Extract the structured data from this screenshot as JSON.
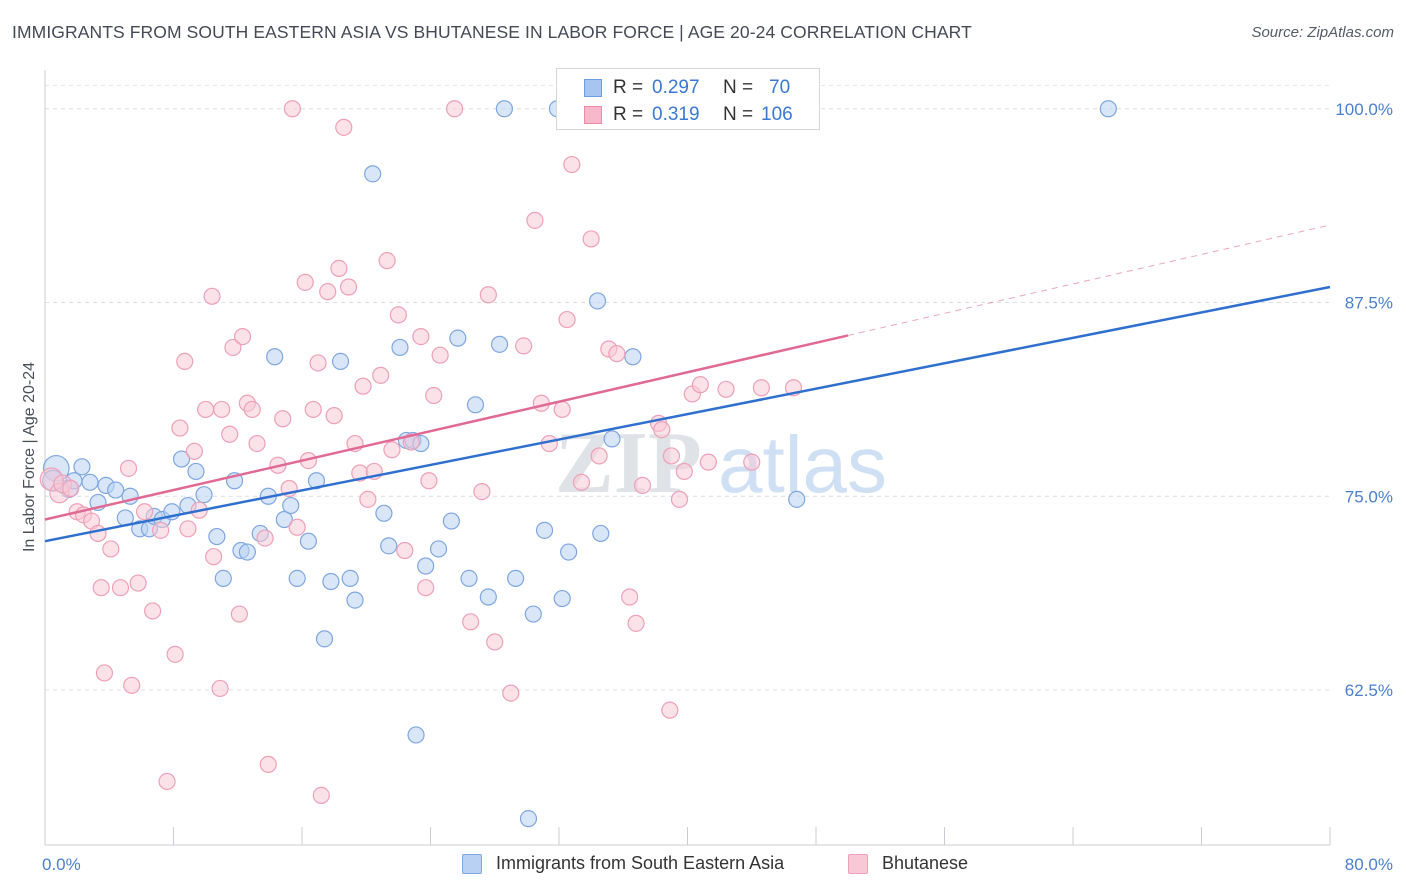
{
  "title": "IMMIGRANTS FROM SOUTH EASTERN ASIA VS BHUTANESE IN LABOR FORCE | AGE 20-24 CORRELATION CHART",
  "source": "Source: ZipAtlas.com",
  "watermark": {
    "zip": "ZIP",
    "atlas": "atlas"
  },
  "stats": [
    {
      "r_label": "R =",
      "r_value": "0.297",
      "n_label": "N =",
      "n_value": "70",
      "color": "#a7c5ee",
      "border": "#6d9de0"
    },
    {
      "r_label": "R =",
      "r_value": "0.319",
      "n_label": "N =",
      "n_value": "106",
      "color": "#f7b8cb",
      "border": "#ec8aaa"
    }
  ],
  "legend": [
    {
      "label": "Immigrants from South Eastern Asia",
      "color": "#b9d1f3",
      "border": "#7ea6e0"
    },
    {
      "label": "Bhutanese",
      "color": "#f8c8d6",
      "border": "#eea0b8"
    }
  ],
  "chart_data": {
    "type": "scatter",
    "title": "IMMIGRANTS FROM SOUTH EASTERN ASIA VS BHUTANESE IN LABOR FORCE | AGE 20-24 CORRELATION CHART",
    "xlabel": "",
    "ylabel": "In Labor Force | Age 20-24",
    "xlim": [
      0,
      80
    ],
    "ylim": [
      52.5,
      102.5
    ],
    "x_tick_labels": [
      {
        "v": 0,
        "t": "0.0%"
      },
      {
        "v": 80,
        "t": "80.0%"
      }
    ],
    "y_tick_labels": [
      {
        "v": 62.5,
        "t": "62.5%"
      },
      {
        "v": 75.0,
        "t": "75.0%"
      },
      {
        "v": 87.5,
        "t": "87.5%"
      },
      {
        "v": 100.0,
        "t": "100.0%"
      }
    ],
    "grid": "horizontal dashed",
    "legend_position": "bottom",
    "series": [
      {
        "name": "Immigrants from South Eastern Asia",
        "color": "#7ea6e0",
        "fill": "#b9d1f3",
        "line_color": "#2f6fce",
        "trend": {
          "x0": 0,
          "y0": 72.1,
          "x1": 80,
          "y1": 88.5,
          "dashed_from": null
        },
        "points": [
          [
            0.7,
            76.8,
            16
          ],
          [
            0.5,
            76.0,
            13
          ],
          [
            1.5,
            75.5,
            11
          ],
          [
            2.3,
            76.9,
            10
          ],
          [
            1.8,
            76.0,
            10
          ],
          [
            2.8,
            75.9,
            10
          ],
          [
            3.3,
            74.6,
            10
          ],
          [
            3.8,
            75.7,
            10
          ],
          [
            4.4,
            75.4,
            10
          ],
          [
            5.3,
            75.0,
            10
          ],
          [
            5.0,
            73.6,
            10
          ],
          [
            5.9,
            72.9,
            10
          ],
          [
            6.5,
            72.9,
            10
          ],
          [
            6.8,
            73.7,
            10
          ],
          [
            7.3,
            73.5,
            10
          ],
          [
            7.9,
            74.0,
            10
          ],
          [
            8.5,
            77.4,
            10
          ],
          [
            8.9,
            74.4,
            10
          ],
          [
            9.4,
            76.6,
            10
          ],
          [
            9.9,
            75.1,
            10
          ],
          [
            10.7,
            72.4,
            10
          ],
          [
            11.1,
            69.7,
            10
          ],
          [
            11.8,
            76.0,
            10
          ],
          [
            12.2,
            71.5,
            10
          ],
          [
            12.6,
            71.4,
            10
          ],
          [
            13.4,
            72.6,
            10
          ],
          [
            13.9,
            75.0,
            10
          ],
          [
            14.3,
            84.0,
            10
          ],
          [
            14.9,
            73.5,
            10
          ],
          [
            15.3,
            74.4,
            10
          ],
          [
            15.7,
            69.7,
            10
          ],
          [
            16.4,
            72.1,
            10
          ],
          [
            16.9,
            76.0,
            10
          ],
          [
            17.4,
            65.8,
            10
          ],
          [
            17.8,
            69.5,
            10
          ],
          [
            18.4,
            83.7,
            10
          ],
          [
            19.0,
            69.7,
            10
          ],
          [
            19.3,
            68.3,
            10
          ],
          [
            20.4,
            95.8,
            10
          ],
          [
            21.1,
            73.9,
            10
          ],
          [
            21.4,
            71.8,
            10
          ],
          [
            22.1,
            84.6,
            10
          ],
          [
            22.5,
            78.6,
            10
          ],
          [
            22.9,
            78.6,
            10
          ],
          [
            23.4,
            78.4,
            10
          ],
          [
            23.1,
            59.6,
            10
          ],
          [
            23.7,
            70.5,
            10
          ],
          [
            24.5,
            71.6,
            10
          ],
          [
            25.3,
            73.4,
            10
          ],
          [
            25.7,
            85.2,
            10
          ],
          [
            26.4,
            69.7,
            10
          ],
          [
            26.8,
            80.9,
            10
          ],
          [
            27.6,
            68.5,
            10
          ],
          [
            28.3,
            84.8,
            10
          ],
          [
            28.6,
            100.0,
            10
          ],
          [
            29.3,
            69.7,
            10
          ],
          [
            30.4,
            67.4,
            10
          ],
          [
            30.1,
            54.2,
            10
          ],
          [
            31.1,
            72.8,
            10
          ],
          [
            32.2,
            68.4,
            10
          ],
          [
            31.9,
            100.0,
            10
          ],
          [
            32.6,
            71.4,
            10
          ],
          [
            34.2,
            100.0,
            10
          ],
          [
            34.4,
            87.6,
            10
          ],
          [
            34.6,
            72.6,
            10
          ],
          [
            35.3,
            78.7,
            10
          ],
          [
            36.6,
            84.0,
            10
          ],
          [
            46.8,
            74.8,
            10
          ],
          [
            66.2,
            100.0,
            10
          ]
        ]
      },
      {
        "name": "Bhutanese",
        "color": "#eea0b8",
        "fill": "#f8c8d6",
        "line_color": "#e06a94",
        "trend": {
          "x0": 0,
          "y0": 73.5,
          "x1": 80,
          "y1": 92.5,
          "dashed_from": 50
        },
        "points": [
          [
            0.4,
            76.1,
            14
          ],
          [
            0.9,
            75.2,
            12
          ],
          [
            1.1,
            75.8,
            11
          ],
          [
            1.6,
            75.5,
            10
          ],
          [
            2.0,
            74.0,
            10
          ],
          [
            2.4,
            73.8,
            10
          ],
          [
            2.9,
            73.4,
            10
          ],
          [
            3.3,
            72.6,
            10
          ],
          [
            3.5,
            69.1,
            10
          ],
          [
            3.7,
            63.6,
            10
          ],
          [
            4.1,
            71.6,
            10
          ],
          [
            4.7,
            69.1,
            10
          ],
          [
            5.2,
            76.8,
            10
          ],
          [
            5.4,
            62.8,
            10
          ],
          [
            5.8,
            69.4,
            10
          ],
          [
            6.2,
            74.0,
            10
          ],
          [
            6.7,
            67.6,
            10
          ],
          [
            7.2,
            72.8,
            10
          ],
          [
            7.6,
            56.6,
            10
          ],
          [
            8.1,
            64.8,
            10
          ],
          [
            8.4,
            79.4,
            10
          ],
          [
            8.7,
            83.7,
            10
          ],
          [
            8.9,
            72.9,
            10
          ],
          [
            9.3,
            77.9,
            10
          ],
          [
            9.6,
            74.1,
            10
          ],
          [
            10.0,
            80.6,
            10
          ],
          [
            10.5,
            71.1,
            10
          ],
          [
            10.4,
            87.9,
            10
          ],
          [
            10.9,
            62.6,
            10
          ],
          [
            11.0,
            80.6,
            10
          ],
          [
            11.5,
            79.0,
            10
          ],
          [
            11.7,
            84.6,
            10
          ],
          [
            12.1,
            67.4,
            10
          ],
          [
            12.3,
            85.3,
            10
          ],
          [
            12.6,
            81.0,
            10
          ],
          [
            12.9,
            80.6,
            10
          ],
          [
            13.2,
            78.4,
            10
          ],
          [
            13.7,
            72.3,
            10
          ],
          [
            13.9,
            57.7,
            10
          ],
          [
            14.5,
            77.0,
            10
          ],
          [
            14.8,
            80.0,
            10
          ],
          [
            15.2,
            75.5,
            10
          ],
          [
            15.7,
            73.0,
            10
          ],
          [
            15.4,
            100.0,
            10
          ],
          [
            16.2,
            88.8,
            10
          ],
          [
            16.4,
            77.3,
            10
          ],
          [
            16.7,
            80.6,
            10
          ],
          [
            17.0,
            83.6,
            10
          ],
          [
            17.2,
            55.7,
            10
          ],
          [
            17.6,
            88.2,
            10
          ],
          [
            18.0,
            80.2,
            10
          ],
          [
            18.3,
            89.7,
            10
          ],
          [
            18.6,
            98.8,
            10
          ],
          [
            18.9,
            88.5,
            10
          ],
          [
            19.3,
            78.4,
            10
          ],
          [
            19.6,
            76.5,
            10
          ],
          [
            19.8,
            82.1,
            10
          ],
          [
            20.1,
            74.8,
            10
          ],
          [
            20.5,
            76.6,
            10
          ],
          [
            20.9,
            82.8,
            10
          ],
          [
            21.3,
            90.2,
            10
          ],
          [
            21.6,
            78.0,
            10
          ],
          [
            22.0,
            86.7,
            10
          ],
          [
            22.4,
            71.5,
            10
          ],
          [
            22.8,
            78.5,
            10
          ],
          [
            23.4,
            85.3,
            10
          ],
          [
            23.7,
            69.1,
            10
          ],
          [
            23.9,
            76.0,
            10
          ],
          [
            24.2,
            81.5,
            10
          ],
          [
            24.6,
            84.1,
            10
          ],
          [
            25.5,
            100.0,
            10
          ],
          [
            26.5,
            66.9,
            10
          ],
          [
            27.2,
            75.3,
            10
          ],
          [
            27.6,
            88.0,
            10
          ],
          [
            28.0,
            65.6,
            10
          ],
          [
            29.0,
            62.3,
            10
          ],
          [
            29.8,
            84.7,
            10
          ],
          [
            30.5,
            92.8,
            10
          ],
          [
            30.9,
            81.0,
            10
          ],
          [
            31.4,
            78.4,
            10
          ],
          [
            32.2,
            80.6,
            10
          ],
          [
            32.5,
            86.4,
            10
          ],
          [
            32.8,
            96.4,
            10
          ],
          [
            33.4,
            75.9,
            10
          ],
          [
            34.0,
            91.6,
            10
          ],
          [
            34.5,
            77.6,
            10
          ],
          [
            35.1,
            84.5,
            10
          ],
          [
            35.6,
            84.2,
            10
          ],
          [
            36.4,
            68.5,
            10
          ],
          [
            36.8,
            66.8,
            10
          ],
          [
            37.2,
            75.7,
            10
          ],
          [
            38.2,
            79.7,
            10
          ],
          [
            38.4,
            79.3,
            10
          ],
          [
            39.0,
            77.6,
            10
          ],
          [
            39.5,
            74.8,
            10
          ],
          [
            39.8,
            76.6,
            10
          ],
          [
            40.3,
            81.6,
            10
          ],
          [
            40.8,
            82.2,
            10
          ],
          [
            38.9,
            61.2,
            10
          ],
          [
            41.3,
            77.2,
            10
          ],
          [
            42.4,
            81.9,
            10
          ],
          [
            43.1,
            100.0,
            10
          ],
          [
            44.6,
            82.0,
            10
          ],
          [
            44.0,
            77.2,
            10
          ],
          [
            46.6,
            82.0,
            10
          ]
        ]
      }
    ]
  }
}
